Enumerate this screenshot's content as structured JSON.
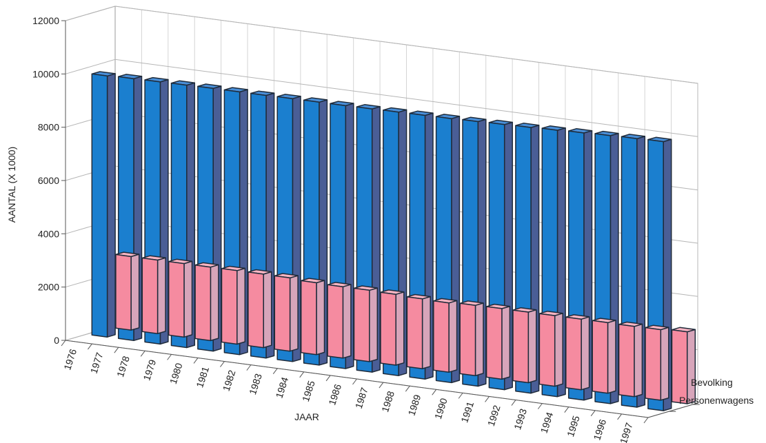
{
  "chart_data": {
    "type": "bar",
    "categories": [
      "1976",
      "1977",
      "1978",
      "1979",
      "1980",
      "1981",
      "1982",
      "1983",
      "1984",
      "1985",
      "1986",
      "1987",
      "1988",
      "1989",
      "1990",
      "1991",
      "1992",
      "1993",
      "1994",
      "1995",
      "1996",
      "1997"
    ],
    "series": [
      {
        "name": "Bevolking",
        "values": [
          9800,
          9830,
          9840,
          9850,
          9860,
          9860,
          9860,
          9870,
          9870,
          9870,
          9880,
          9890,
          9900,
          9910,
          9930,
          9950,
          9970,
          10000,
          10030,
          10060,
          10080,
          10100
        ],
        "color": "#1f78c4"
      },
      {
        "name": "Personenwagens",
        "values": [
          2760,
          2760,
          2760,
          2760,
          2760,
          2760,
          2750,
          2700,
          2680,
          2680,
          2660,
          2620,
          2600,
          2640,
          2650,
          2650,
          2650,
          2650,
          2650,
          2640,
          2650,
          2700
        ],
        "color": "#f48aa0"
      }
    ],
    "xlabel": "JAAR",
    "ylabel": "AANTAL (X 1000)",
    "ylim": [
      0,
      12000
    ],
    "yticks": [
      0,
      2000,
      4000,
      6000,
      8000,
      10000,
      12000
    ],
    "grid": true,
    "legend": "right"
  }
}
